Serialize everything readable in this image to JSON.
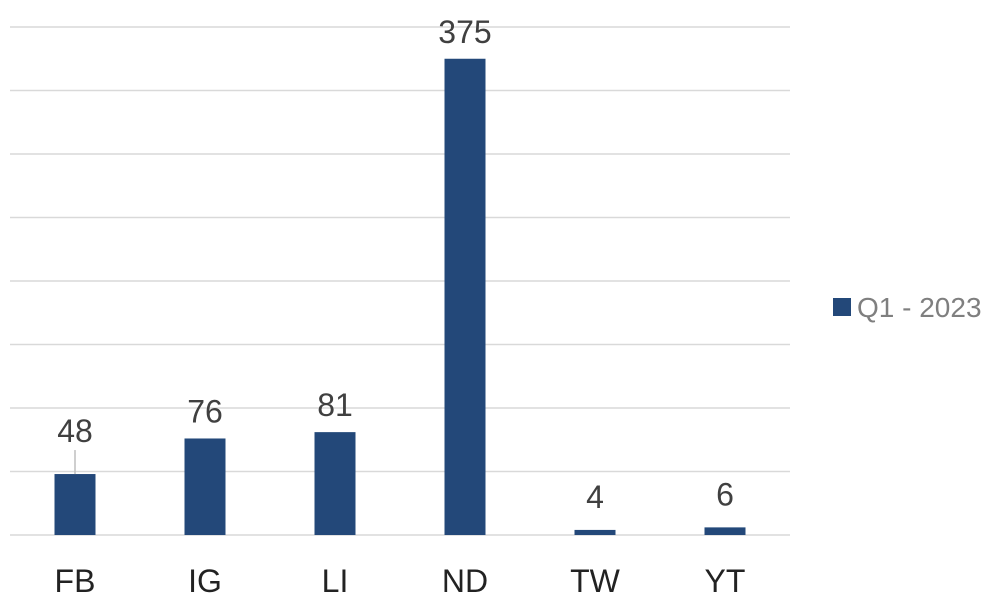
{
  "chart_data": {
    "type": "bar",
    "title": "",
    "xlabel": "",
    "ylabel": "",
    "categories": [
      "FB",
      "IG",
      "LI",
      "ND",
      "TW",
      "YT"
    ],
    "series": [
      {
        "name": "Q1 - 2023",
        "values": [
          48,
          76,
          81,
          375,
          4,
          6
        ],
        "color": "#234879"
      }
    ],
    "ylim": [
      0,
      400
    ],
    "grid": true,
    "legend_position": "right",
    "data_labels": true
  }
}
